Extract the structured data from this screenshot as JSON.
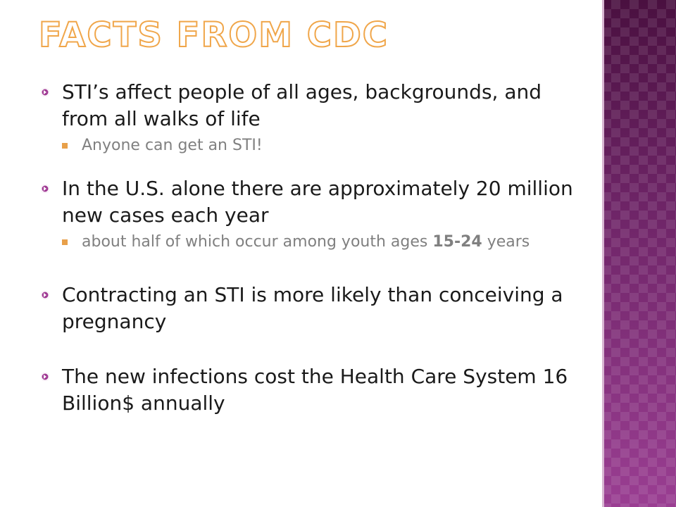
{
  "slide": {
    "title": "Facts from CDC",
    "colors": {
      "title_outline": "#f0a64a",
      "bullet_marker": "#a03a94",
      "sub_marker": "#e8a04a",
      "panel": "#7a2a72"
    },
    "bullets": [
      {
        "text": "STI’s affect people of all ages, backgrounds, and from all walks of life",
        "sub": [
          {
            "text": "Anyone can get an STI!"
          }
        ]
      },
      {
        "text": "In the U.S. alone there are approximately 20 million new cases each year",
        "sub": [
          {
            "text_before": "about half of which occur among youth ages ",
            "text_bold": "15-24",
            "text_after": " years"
          }
        ]
      },
      {
        "text": "Contracting an STI is more likely than conceiving a pregnancy"
      },
      {
        "text": "The new infections cost the Health Care System 16 Billion$ annually"
      }
    ]
  }
}
